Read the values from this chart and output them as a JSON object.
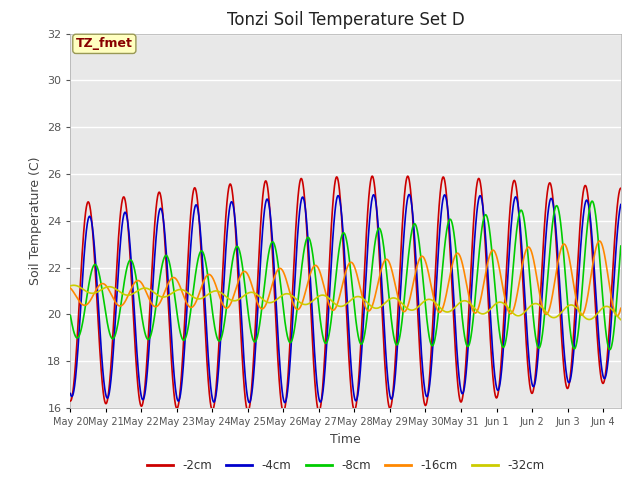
{
  "title": "Tonzi Soil Temperature Set D",
  "xlabel": "Time",
  "ylabel": "Soil Temperature (C)",
  "ylim": [
    16,
    32
  ],
  "label_text": "TZ_fmet",
  "bg_color": "#e8e8e8",
  "series": {
    "-2cm": {
      "color": "#cc0000",
      "lw": 1.2
    },
    "-4cm": {
      "color": "#0000cc",
      "lw": 1.2
    },
    "-8cm": {
      "color": "#00cc00",
      "lw": 1.2
    },
    "-16cm": {
      "color": "#ff8800",
      "lw": 1.2
    },
    "-32cm": {
      "color": "#cccc00",
      "lw": 1.2
    }
  },
  "tick_labels": [
    "May 20",
    "May 21",
    "May 22",
    "May 23",
    "May 24",
    "May 25",
    "May 26",
    "May 27",
    "May 28",
    "May 29",
    "May 30",
    "May 31",
    "Jun 1",
    "Jun 2",
    "Jun 3",
    "Jun 4"
  ],
  "yticks": [
    16,
    18,
    20,
    22,
    24,
    26,
    28,
    30,
    32
  ]
}
